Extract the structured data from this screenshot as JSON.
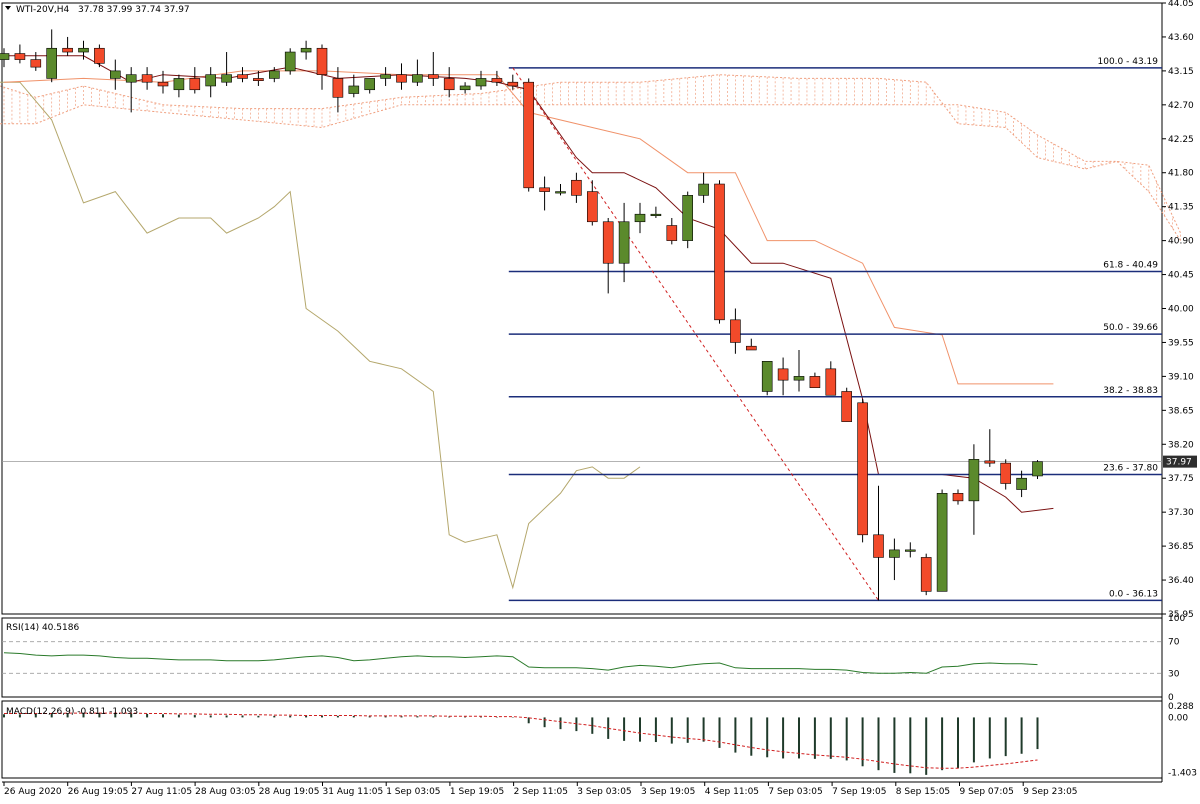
{
  "header": {
    "title": "WTI-20V,H4",
    "ohlc": "37.78 37.99 37.74 37.97"
  },
  "colors": {
    "bull": "#5b8a2c",
    "bear": "#f24a2a",
    "level_line": "#1b2d7a",
    "tenkan": "#7a1010",
    "kijun": "#f0926a",
    "chikou": "#b4a76c",
    "cloud": "#f0a080",
    "rsi_line": "#2a7a2a",
    "macd_signal": "#d02020",
    "price_tag_bg": "#2e2e2e",
    "price_tag_fg": "#ffffff"
  },
  "chart_data": [
    {
      "type": "candlestick",
      "title": "WTI-20V,H4",
      "ylim": [
        35.95,
        44.05
      ],
      "price_ticks": [
        "44.05",
        "43.60",
        "43.15",
        "42.70",
        "42.25",
        "41.80",
        "41.35",
        "40.90",
        "40.45",
        "40.00",
        "39.55",
        "39.10",
        "38.65",
        "38.20",
        "37.75",
        "37.30",
        "36.85",
        "36.40",
        "35.95"
      ],
      "time_labels": [
        "26 Aug 2020",
        "26 Aug 19:05",
        "27 Aug 11:05",
        "28 Aug 03:05",
        "28 Aug 19:05",
        "31 Aug 11:05",
        "1 Sep 03:05",
        "1 Sep 19:05",
        "2 Sep 11:05",
        "3 Sep 03:05",
        "3 Sep 19:05",
        "4 Sep 11:05",
        "7 Sep 03:05",
        "7 Sep 19:05",
        "8 Sep 15:05",
        "9 Sep 07:05",
        "9 Sep 23:05"
      ],
      "current_price": "37.97",
      "candles": [
        [
          43.3,
          43.45,
          43.2,
          43.38
        ],
        [
          43.38,
          43.5,
          43.25,
          43.3
        ],
        [
          43.3,
          43.4,
          43.15,
          43.2
        ],
        [
          43.05,
          43.7,
          43.0,
          43.45
        ],
        [
          43.45,
          43.6,
          43.35,
          43.4
        ],
        [
          43.4,
          43.55,
          43.3,
          43.45
        ],
        [
          43.45,
          43.5,
          43.2,
          43.25
        ],
        [
          43.05,
          43.3,
          42.9,
          43.15
        ],
        [
          43.0,
          43.2,
          42.6,
          43.1
        ],
        [
          43.1,
          43.2,
          42.9,
          43.0
        ],
        [
          43.0,
          43.15,
          42.85,
          42.95
        ],
        [
          42.9,
          43.1,
          42.8,
          43.05
        ],
        [
          43.05,
          43.2,
          42.85,
          42.9
        ],
        [
          42.95,
          43.2,
          42.8,
          43.1
        ],
        [
          43.0,
          43.4,
          42.95,
          43.1
        ],
        [
          43.1,
          43.2,
          43.0,
          43.05
        ],
        [
          43.05,
          43.15,
          42.95,
          43.02
        ],
        [
          43.05,
          43.2,
          43.0,
          43.15
        ],
        [
          43.15,
          43.45,
          43.1,
          43.4
        ],
        [
          43.4,
          43.55,
          43.3,
          43.45
        ],
        [
          43.45,
          43.5,
          42.9,
          43.1
        ],
        [
          43.05,
          43.2,
          42.6,
          42.8
        ],
        [
          42.85,
          43.1,
          42.8,
          42.95
        ],
        [
          42.9,
          43.05,
          42.85,
          43.05
        ],
        [
          43.05,
          43.2,
          42.95,
          43.1
        ],
        [
          43.1,
          43.25,
          42.9,
          43.0
        ],
        [
          43.0,
          43.3,
          42.95,
          43.1
        ],
        [
          43.1,
          43.4,
          42.95,
          43.05
        ],
        [
          43.05,
          43.2,
          42.8,
          42.9
        ],
        [
          42.9,
          43.0,
          42.85,
          42.95
        ],
        [
          42.95,
          43.15,
          42.9,
          43.05
        ],
        [
          43.05,
          43.15,
          42.95,
          43.0
        ],
        [
          43.0,
          43.1,
          42.9,
          42.95
        ],
        [
          43.0,
          43.05,
          41.55,
          41.6
        ],
        [
          41.6,
          41.75,
          41.3,
          41.55
        ],
        [
          41.55,
          41.65,
          41.5,
          41.55
        ],
        [
          41.7,
          41.8,
          41.4,
          41.5
        ],
        [
          41.55,
          41.7,
          41.1,
          41.15
        ],
        [
          41.15,
          41.2,
          40.2,
          40.6
        ],
        [
          40.6,
          41.4,
          40.35,
          41.15
        ],
        [
          41.15,
          41.4,
          41.0,
          41.25
        ],
        [
          41.25,
          41.35,
          41.2,
          41.25
        ],
        [
          41.1,
          41.2,
          40.85,
          40.9
        ],
        [
          40.9,
          41.55,
          40.8,
          41.5
        ],
        [
          41.5,
          41.8,
          41.4,
          41.65
        ],
        [
          41.65,
          41.7,
          39.8,
          39.85
        ],
        [
          39.85,
          40.0,
          39.4,
          39.55
        ],
        [
          39.5,
          39.6,
          39.45,
          39.45
        ],
        [
          38.9,
          39.3,
          38.85,
          39.3
        ],
        [
          39.2,
          39.35,
          38.85,
          39.05
        ],
        [
          39.05,
          39.45,
          38.9,
          39.1
        ],
        [
          39.1,
          39.15,
          38.95,
          38.95
        ],
        [
          39.2,
          39.3,
          38.85,
          38.85
        ],
        [
          38.9,
          38.95,
          38.5,
          38.5
        ],
        [
          38.75,
          38.8,
          36.9,
          37.0
        ],
        [
          37.0,
          37.65,
          36.13,
          36.7
        ],
        [
          36.7,
          36.95,
          36.4,
          36.8
        ],
        [
          36.8,
          36.9,
          36.7,
          36.8
        ],
        [
          36.7,
          36.75,
          36.2,
          36.25
        ],
        [
          36.25,
          37.6,
          36.25,
          37.55
        ],
        [
          37.55,
          37.6,
          37.4,
          37.45
        ],
        [
          37.45,
          38.2,
          37.0,
          38.0
        ],
        [
          37.98,
          38.4,
          37.9,
          37.95
        ],
        [
          37.95,
          38.0,
          37.6,
          37.68
        ],
        [
          37.6,
          37.85,
          37.5,
          37.75
        ],
        [
          37.78,
          37.99,
          37.74,
          37.97
        ]
      ],
      "ichimoku": {
        "tenkan": [
          [
            0,
            43.35
          ],
          [
            5,
            43.35
          ],
          [
            8,
            43.0
          ],
          [
            10,
            43.1
          ],
          [
            14,
            43.05
          ],
          [
            18,
            43.2
          ],
          [
            21,
            43.05
          ],
          [
            25,
            43.1
          ],
          [
            29,
            43.05
          ],
          [
            31,
            43.0
          ],
          [
            33,
            42.9
          ],
          [
            36,
            42.0
          ],
          [
            37,
            41.8
          ],
          [
            39,
            41.8
          ],
          [
            41,
            41.6
          ],
          [
            43,
            41.2
          ],
          [
            45,
            41.05
          ],
          [
            47,
            40.6
          ],
          [
            49,
            40.6
          ],
          [
            52,
            40.4
          ],
          [
            54,
            38.8
          ],
          [
            55,
            37.8
          ],
          [
            58,
            37.8
          ],
          [
            59,
            37.8
          ],
          [
            61,
            37.75
          ],
          [
            63,
            37.5
          ],
          [
            64,
            37.3
          ],
          [
            66,
            37.35
          ]
        ],
        "kijun": [
          [
            0,
            43.0
          ],
          [
            5,
            43.05
          ],
          [
            10,
            43.0
          ],
          [
            15,
            43.15
          ],
          [
            20,
            43.15
          ],
          [
            25,
            43.1
          ],
          [
            31,
            43.1
          ],
          [
            33,
            42.6
          ],
          [
            37,
            42.4
          ],
          [
            40,
            42.25
          ],
          [
            43,
            41.8
          ],
          [
            46,
            41.8
          ],
          [
            48,
            40.9
          ],
          [
            51,
            40.9
          ],
          [
            54,
            40.6
          ],
          [
            56,
            39.75
          ],
          [
            59,
            39.65
          ],
          [
            60,
            39.0
          ],
          [
            63,
            39.0
          ],
          [
            66,
            39.0
          ]
        ],
        "chikou": [
          [
            -1,
            43.0
          ],
          [
            1,
            43.0
          ],
          [
            3,
            42.5
          ],
          [
            5,
            41.4
          ],
          [
            7,
            41.55
          ],
          [
            9,
            41.0
          ],
          [
            11,
            41.2
          ],
          [
            13,
            41.2
          ],
          [
            14,
            41.0
          ],
          [
            16,
            41.2
          ],
          [
            17,
            41.35
          ],
          [
            18,
            41.55
          ],
          [
            19,
            40.0
          ],
          [
            21,
            39.7
          ],
          [
            23,
            39.3
          ],
          [
            25,
            39.2
          ],
          [
            27,
            38.9
          ],
          [
            28,
            37.0
          ],
          [
            29,
            36.9
          ],
          [
            31,
            37.0
          ],
          [
            32,
            36.3
          ],
          [
            33,
            37.15
          ],
          [
            35,
            37.55
          ],
          [
            36,
            37.85
          ],
          [
            37,
            37.9
          ],
          [
            38,
            37.75
          ],
          [
            39,
            37.75
          ],
          [
            40,
            37.9
          ]
        ],
        "span_a": [
          [
            -1,
            43.0
          ],
          [
            2,
            42.8
          ],
          [
            5,
            42.95
          ],
          [
            10,
            42.7
          ],
          [
            15,
            42.65
          ],
          [
            20,
            42.65
          ],
          [
            25,
            42.8
          ],
          [
            30,
            42.85
          ],
          [
            35,
            43.0
          ],
          [
            40,
            43.0
          ],
          [
            45,
            43.1
          ],
          [
            50,
            43.05
          ],
          [
            55,
            43.05
          ],
          [
            58,
            43.0
          ],
          [
            60,
            42.45
          ],
          [
            63,
            42.4
          ],
          [
            65,
            42.0
          ],
          [
            68,
            41.85
          ],
          [
            70,
            41.95
          ],
          [
            72,
            41.55
          ],
          [
            74,
            40.9
          ]
        ],
        "span_b": [
          [
            -1,
            42.45
          ],
          [
            2,
            42.45
          ],
          [
            5,
            42.7
          ],
          [
            10,
            42.6
          ],
          [
            15,
            42.5
          ],
          [
            20,
            42.4
          ],
          [
            25,
            42.7
          ],
          [
            30,
            42.7
          ],
          [
            35,
            42.7
          ],
          [
            40,
            42.7
          ],
          [
            45,
            42.7
          ],
          [
            50,
            42.7
          ],
          [
            55,
            42.7
          ],
          [
            58,
            42.7
          ],
          [
            60,
            42.7
          ],
          [
            63,
            42.6
          ],
          [
            65,
            42.3
          ],
          [
            68,
            41.95
          ],
          [
            70,
            41.95
          ],
          [
            72,
            41.9
          ],
          [
            74,
            41.0
          ]
        ]
      },
      "fibonacci": {
        "start_index": 32,
        "end_index": 55,
        "levels": [
          {
            "label": "100.0 - 43.19",
            "price": 43.19
          },
          {
            "label": "61.8 - 40.49",
            "price": 40.49
          },
          {
            "label": "50.0 - 39.66",
            "price": 39.66
          },
          {
            "label": "38.2 - 38.83",
            "price": 38.83
          },
          {
            "label": "23.6 - 37.80",
            "price": 37.8
          },
          {
            "label": "0.0 - 36.13",
            "price": 36.13
          }
        ]
      }
    },
    {
      "type": "line",
      "title": "RSI(14) 40.5186",
      "ylim": [
        0,
        100
      ],
      "ticks": [
        "100",
        "70",
        "30",
        "0"
      ],
      "levels": [
        70,
        30
      ],
      "values": [
        56,
        55,
        53,
        52,
        53,
        53,
        52,
        50,
        49,
        49,
        48,
        47,
        47,
        47,
        46,
        46,
        46,
        47,
        49,
        51,
        52,
        50,
        46,
        47,
        49,
        51,
        52,
        51,
        51,
        50,
        51,
        52,
        51,
        38,
        37,
        37,
        37,
        36,
        34,
        38,
        40,
        39,
        37,
        40,
        42,
        43,
        37,
        36,
        36,
        36,
        36,
        35,
        35,
        34,
        31,
        30,
        30,
        31,
        30,
        38,
        39,
        42,
        43,
        42,
        42,
        41
      ]
    },
    {
      "type": "bar",
      "title": "MACD(12,26,9) -0.811 -1.093",
      "ylim": [
        -1.55,
        0.42
      ],
      "ticks": [
        "0.288",
        "0.00",
        "-1.403"
      ],
      "hist": [
        0.08,
        0.08,
        0.09,
        0.1,
        0.11,
        0.12,
        0.12,
        0.11,
        0.1,
        0.09,
        0.08,
        0.07,
        0.06,
        0.05,
        0.05,
        0.05,
        0.04,
        0.04,
        0.04,
        0.05,
        0.05,
        0.04,
        0.04,
        0.03,
        0.03,
        0.03,
        0.03,
        0.03,
        0.02,
        0.02,
        0.02,
        0.01,
        0.01,
        -0.15,
        -0.25,
        -0.3,
        -0.35,
        -0.42,
        -0.55,
        -0.6,
        -0.62,
        -0.63,
        -0.67,
        -0.65,
        -0.62,
        -0.78,
        -0.9,
        -0.98,
        -1.02,
        -1.05,
        -1.05,
        -1.06,
        -1.06,
        -1.1,
        -1.25,
        -1.35,
        -1.42,
        -1.43,
        -1.47,
        -1.35,
        -1.3,
        -1.15,
        -1.05,
        -0.99,
        -0.93,
        -0.81
      ],
      "signal": [
        0.1,
        0.1,
        0.1,
        0.1,
        0.11,
        0.11,
        0.11,
        0.11,
        0.11,
        0.1,
        0.1,
        0.09,
        0.09,
        0.08,
        0.08,
        0.07,
        0.07,
        0.06,
        0.06,
        0.05,
        0.05,
        0.05,
        0.05,
        0.04,
        0.04,
        0.04,
        0.04,
        0.04,
        0.03,
        0.03,
        0.03,
        0.02,
        0.02,
        -0.01,
        -0.06,
        -0.11,
        -0.16,
        -0.21,
        -0.28,
        -0.34,
        -0.4,
        -0.45,
        -0.5,
        -0.54,
        -0.57,
        -0.63,
        -0.7,
        -0.77,
        -0.83,
        -0.88,
        -0.92,
        -0.96,
        -0.99,
        -1.02,
        -1.07,
        -1.13,
        -1.19,
        -1.24,
        -1.29,
        -1.3,
        -1.3,
        -1.27,
        -1.23,
        -1.19,
        -1.14,
        -1.09
      ]
    }
  ]
}
